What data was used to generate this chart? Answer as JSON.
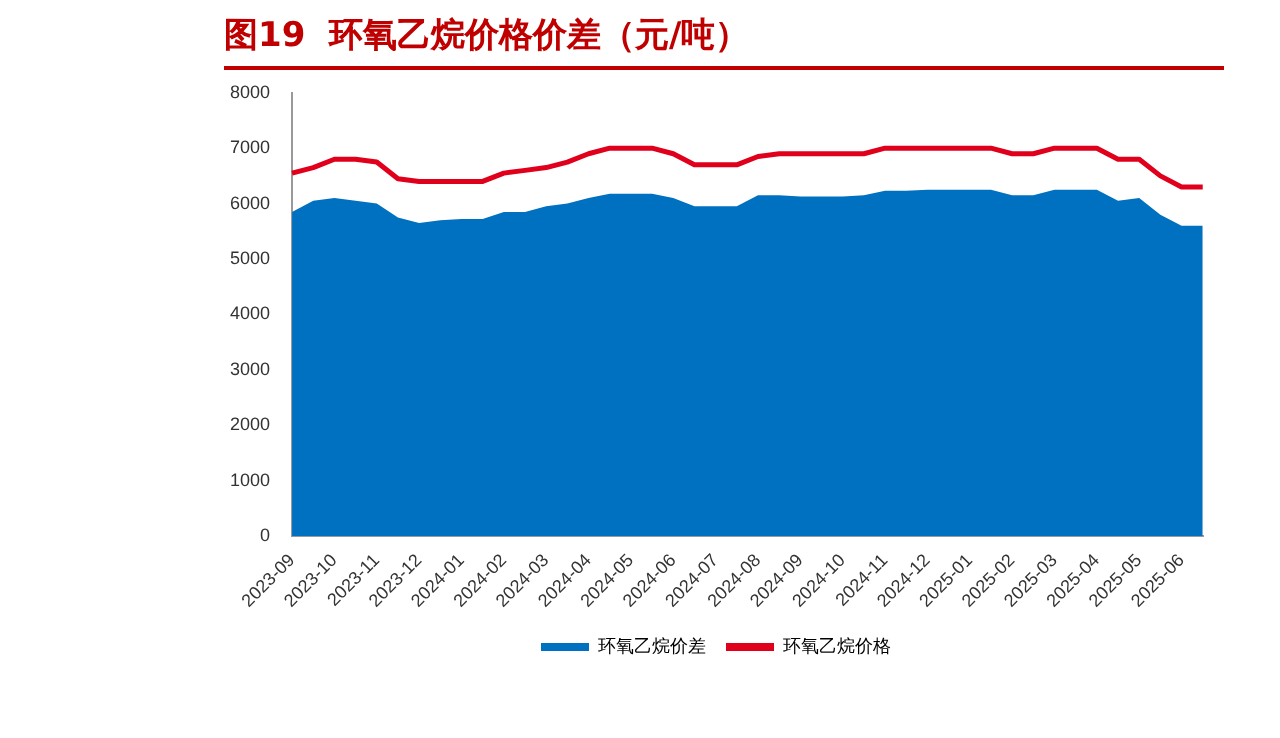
{
  "chart_data": {
    "type": "area",
    "title": "图19  环氧乙烷价格价差（元/吨）",
    "categories": [
      "2023-09",
      null,
      "2023-10",
      null,
      "2023-11",
      null,
      "2023-12",
      null,
      "2024-01",
      null,
      "2024-02",
      null,
      "2024-03",
      null,
      "2024-04",
      null,
      "2024-05",
      null,
      "2024-06",
      null,
      "2024-07",
      null,
      "2024-08",
      null,
      "2024-09",
      null,
      "2024-10",
      null,
      "2024-11",
      null,
      "2024-12",
      null,
      "2025-01",
      null,
      "2025-02",
      null,
      "2025-03",
      null,
      "2025-04",
      null,
      "2025-05",
      null,
      "2025-06",
      null
    ],
    "series": [
      {
        "name": "环氧乙烷价差",
        "color": "#0070c0",
        "values": [
          5850,
          6050,
          6100,
          6050,
          6000,
          5750,
          5650,
          5700,
          5720,
          5720,
          5850,
          5850,
          5950,
          6000,
          6100,
          6180,
          6180,
          6180,
          6100,
          5950,
          5950,
          5950,
          6150,
          6150,
          6130,
          6130,
          6130,
          6150,
          6230,
          6230,
          6250,
          6250,
          6250,
          6250,
          6150,
          6150,
          6250,
          6250,
          6250,
          6050,
          6100,
          5800,
          5600,
          5600
        ]
      },
      {
        "name": "环氧乙烷价格",
        "type": "line",
        "color": "#e0001b",
        "values": [
          6550,
          6650,
          6800,
          6800,
          6750,
          6450,
          6400,
          6400,
          6400,
          6400,
          6550,
          6600,
          6650,
          6750,
          6900,
          7000,
          7000,
          7000,
          6900,
          6700,
          6700,
          6700,
          6850,
          6900,
          6900,
          6900,
          6900,
          6900,
          7000,
          7000,
          7000,
          7000,
          7000,
          7000,
          6900,
          6900,
          7000,
          7000,
          7000,
          6800,
          6800,
          6500,
          6300,
          6300
        ]
      }
    ],
    "ylim": [
      0,
      8000
    ],
    "yticks": [
      0,
      1000,
      2000,
      3000,
      4000,
      5000,
      6000,
      7000,
      8000
    ],
    "grid": false,
    "legend": "bottom",
    "marker": "none"
  }
}
